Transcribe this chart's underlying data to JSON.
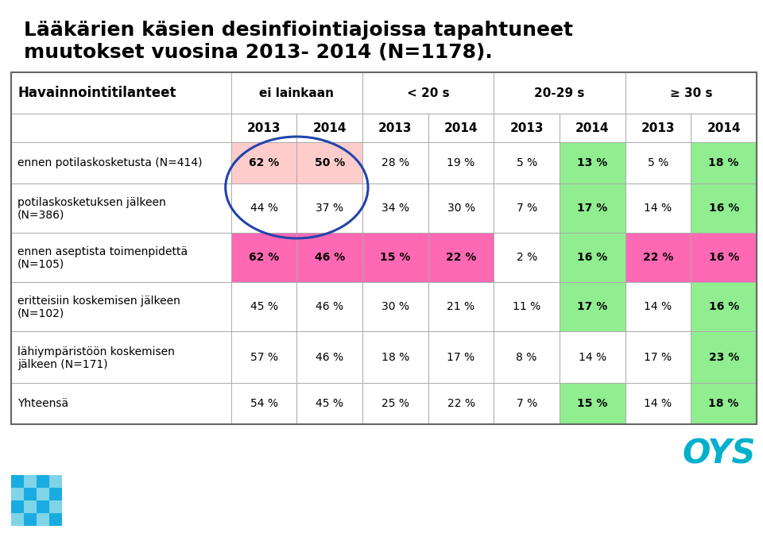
{
  "title_line1": "Lääkärien käsien desinfiointiajoissa tapahtuneet",
  "title_line2": "muutokset vuosina 2013- 2014 (N=1178).",
  "col_header_1": "Havainnointitilanteet",
  "col_header_2": "ei lainkaan",
  "col_header_3": "< 20 s",
  "col_header_4": "20-29 s",
  "col_header_5": "≥ 30 s",
  "year_labels": [
    "2013",
    "2014",
    "2013",
    "2014",
    "2013",
    "2014",
    "2013",
    "2014"
  ],
  "rows": [
    {
      "label_line1": "ennen potilaskosketusta (N=414)",
      "label_line2": "",
      "values": [
        "62 %",
        "50 %",
        "28 %",
        "19 %",
        "5 %",
        "13 %",
        "5 %",
        "18 %"
      ],
      "cell_colors": [
        "#ffcccc",
        "#ffcccc",
        "",
        "",
        "",
        "#90ee90",
        "",
        "#90ee90"
      ]
    },
    {
      "label_line1": "potilaskosketuksen jälkeen",
      "label_line2": "(N=386)",
      "values": [
        "44 %",
        "37 %",
        "34 %",
        "30 %",
        "7 %",
        "17 %",
        "14 %",
        "16 %"
      ],
      "cell_colors": [
        "",
        "",
        "",
        "",
        "",
        "#90ee90",
        "",
        "#90ee90"
      ]
    },
    {
      "label_line1": "ennen aseptista toimenpidettä",
      "label_line2": "(N=105)",
      "values": [
        "62 %",
        "46 %",
        "15 %",
        "22 %",
        "2 %",
        "16 %",
        "22 %",
        "16 %"
      ],
      "cell_colors": [
        "#ff69b4",
        "#ff69b4",
        "#ff69b4",
        "#ff69b4",
        "",
        "#90ee90",
        "#ff69b4",
        "#ff69b4"
      ]
    },
    {
      "label_line1": "eritteisiin koskemisen jälkeen",
      "label_line2": "(N=102)",
      "values": [
        "45 %",
        "46 %",
        "30 %",
        "21 %",
        "11 %",
        "17 %",
        "14 %",
        "16 %"
      ],
      "cell_colors": [
        "",
        "",
        "",
        "",
        "",
        "#90ee90",
        "",
        "#90ee90"
      ]
    },
    {
      "label_line1": "lähiympäristöön koskemisen",
      "label_line2": "jälkeen (N=171)",
      "values": [
        "57 %",
        "46 %",
        "18 %",
        "17 %",
        "8 %",
        "14 %",
        "17 %",
        "23 %"
      ],
      "cell_colors": [
        "",
        "",
        "",
        "",
        "",
        "",
        "",
        "#90ee90"
      ]
    },
    {
      "label_line1": "Yhteensä",
      "label_line2": "",
      "values": [
        "54 %",
        "45 %",
        "25 %",
        "22 %",
        "7 %",
        "15 %",
        "14 %",
        "18 %"
      ],
      "cell_colors": [
        "",
        "",
        "",
        "",
        "",
        "#90ee90",
        "",
        "#90ee90"
      ]
    }
  ],
  "oys_color": "#00b0cc",
  "bg_color": "#ffffff",
  "tile_colors_dark": "#1aace0",
  "tile_colors_light": "#7fd4e8"
}
